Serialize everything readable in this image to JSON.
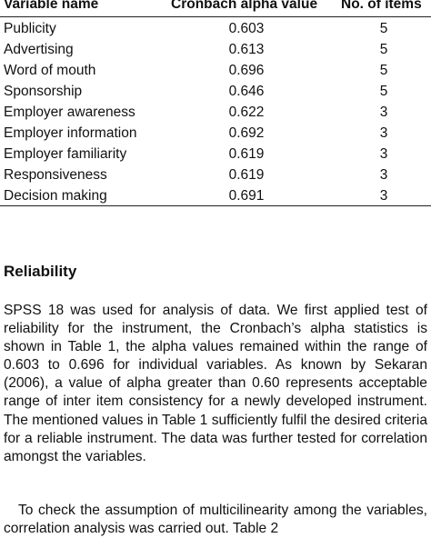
{
  "table": {
    "headers": [
      "Variable name",
      "Cronbach alpha value",
      "No. of items"
    ],
    "rows": [
      {
        "name": "Publicity",
        "alpha": "0.603",
        "items": "5"
      },
      {
        "name": "Advertising",
        "alpha": "0.613",
        "items": "5"
      },
      {
        "name": "Word of mouth",
        "alpha": "0.696",
        "items": "5"
      },
      {
        "name": "Sponsorship",
        "alpha": "0.646",
        "items": "5"
      },
      {
        "name": "Employer awareness",
        "alpha": "0.622",
        "items": "3"
      },
      {
        "name": "Employer information",
        "alpha": "0.692",
        "items": "3"
      },
      {
        "name": "Employer familiarity",
        "alpha": "0.619",
        "items": "3"
      },
      {
        "name": "Responsiveness",
        "alpha": "0.619",
        "items": "3"
      },
      {
        "name": "Decision making",
        "alpha": "0.691",
        "items": "3"
      }
    ]
  },
  "section": {
    "heading": "Reliability",
    "paragraph1": "SPSS 18 was used for analysis of data. We first applied test of reliability for the instrument, the Cronbach’s alpha statistics is shown in Table 1, the alpha values remained within the range of 0.603 to 0.696 for individual variables. As known by Sekaran (2006), a value of alpha greater than 0.60 represents acceptable range of inter item consistency for a newly developed instrument. The mentioned values in Table 1 sufficiently fulfil the desired criteria for a reliable instrument. The data was further tested for correlation amongst the variables.",
    "paragraph2": "To check the assumption of multicilinearity among the variables, correlation analysis was carried out. Table 2"
  }
}
